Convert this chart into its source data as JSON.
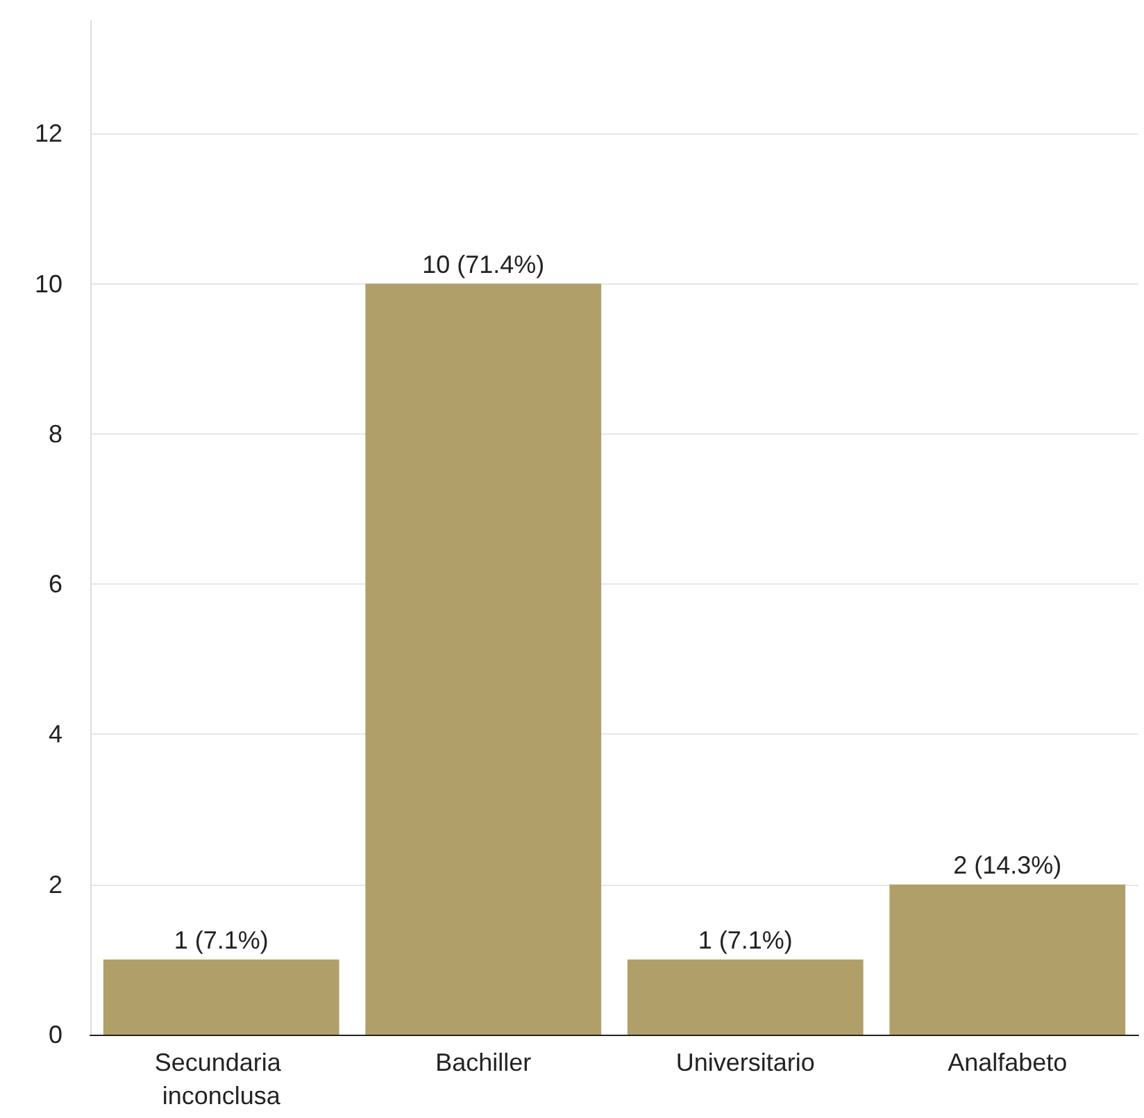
{
  "chart_data": {
    "type": "bar",
    "categories": [
      "Secundaria inconclusa",
      "Bachiller",
      "Universitario",
      "Analfabeto"
    ],
    "values": [
      1,
      10,
      1,
      2
    ],
    "value_labels": [
      "1 (7.1%)",
      "10 (71.4%)",
      "1 (7.1%)",
      "2 (14.3%)"
    ],
    "color": "#b09f69",
    "ylim": [
      0,
      13.5
    ],
    "yticks": [
      0,
      2,
      4,
      6,
      8,
      10,
      12
    ],
    "grid": "y"
  }
}
